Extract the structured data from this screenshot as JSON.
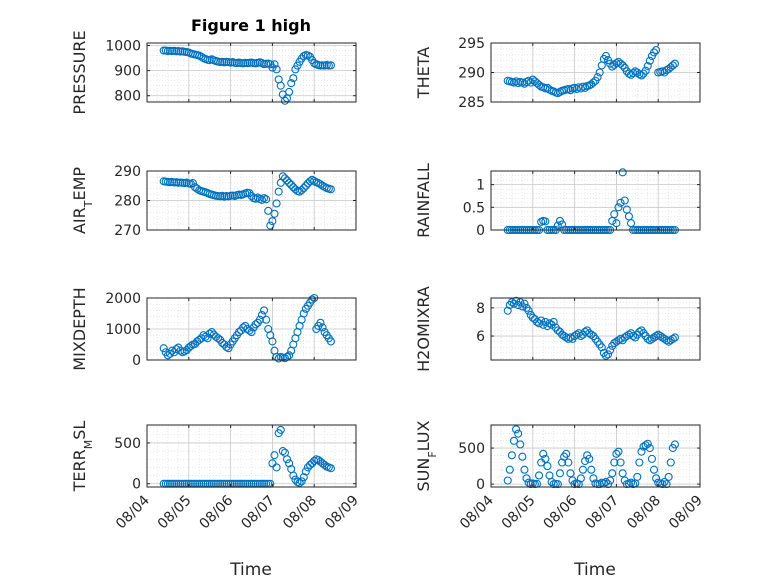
{
  "figure": {
    "title": "Figure 1 high",
    "xlabel": "Time",
    "xticks": [
      "08/04",
      "08/05",
      "08/06",
      "08/07",
      "08/08",
      "08/09"
    ],
    "marker_color": "#0072BD",
    "grid_color": "#d9d9d9",
    "axis_color": "#262626"
  },
  "chart_data": [
    {
      "type": "scatter",
      "ylabel": "PRESSURE",
      "ylim": [
        775,
        1010
      ],
      "yticks": [
        800,
        900,
        1000
      ],
      "x_range": [
        "08/04",
        "08/09"
      ],
      "grid": true,
      "x": [
        4.4,
        4.45,
        4.5,
        4.55,
        4.6,
        4.65,
        4.7,
        4.75,
        4.8,
        4.85,
        4.9,
        4.95,
        5.0,
        5.05,
        5.1,
        5.15,
        5.2,
        5.25,
        5.3,
        5.35,
        5.4,
        5.45,
        5.5,
        5.55,
        5.6,
        5.65,
        5.7,
        5.75,
        5.8,
        5.85,
        5.9,
        5.95,
        6.0,
        6.05,
        6.1,
        6.15,
        6.2,
        6.25,
        6.3,
        6.35,
        6.4,
        6.45,
        6.5,
        6.55,
        6.6,
        6.65,
        6.7,
        6.75,
        6.8,
        6.85,
        6.9,
        6.95,
        7.0,
        7.05,
        7.1,
        7.15,
        7.2,
        7.25,
        7.3,
        7.35,
        7.4,
        7.45,
        7.5,
        7.55,
        7.6,
        7.65,
        7.7,
        7.75,
        7.8,
        7.85,
        7.9,
        7.95,
        8.0,
        8.05,
        8.1,
        8.15,
        8.2,
        8.25,
        8.3,
        8.35,
        8.4
      ],
      "y": [
        980,
        980,
        978,
        979,
        978,
        979,
        977,
        978,
        976,
        977,
        975,
        974,
        972,
        968,
        966,
        964,
        962,
        960,
        955,
        950,
        946,
        943,
        942,
        945,
        941,
        938,
        936,
        934,
        935,
        933,
        935,
        934,
        932,
        934,
        931,
        930,
        932,
        930,
        929,
        931,
        930,
        931,
        932,
        930,
        929,
        931,
        933,
        930,
        926,
        927,
        928,
        925,
        912,
        925,
        905,
        865,
        840,
        805,
        780,
        790,
        815,
        850,
        870,
        905,
        920,
        935,
        948,
        958,
        962,
        960,
        955,
        942,
        930,
        925,
        922,
        920,
        921,
        920,
        922,
        920,
        921
      ]
    },
    {
      "type": "scatter",
      "ylabel": "THETA",
      "ylim": [
        285,
        295
      ],
      "yticks": [
        285,
        290,
        295
      ],
      "x_range": [
        "08/04",
        "08/09"
      ],
      "grid": true,
      "x": [
        4.4,
        4.45,
        4.5,
        4.55,
        4.6,
        4.65,
        4.7,
        4.75,
        4.8,
        4.85,
        4.9,
        4.95,
        5.0,
        5.05,
        5.1,
        5.15,
        5.2,
        5.25,
        5.3,
        5.35,
        5.4,
        5.45,
        5.5,
        5.55,
        5.6,
        5.65,
        5.7,
        5.75,
        5.8,
        5.85,
        5.9,
        5.95,
        6.0,
        6.05,
        6.1,
        6.15,
        6.2,
        6.25,
        6.3,
        6.35,
        6.4,
        6.45,
        6.5,
        6.55,
        6.6,
        6.65,
        6.7,
        6.75,
        6.8,
        6.85,
        6.9,
        6.95,
        7.0,
        7.05,
        7.1,
        7.15,
        7.2,
        7.25,
        7.3,
        7.35,
        7.4,
        7.45,
        7.5,
        7.55,
        7.6,
        7.65,
        7.7,
        7.75,
        7.8,
        7.85,
        7.9,
        7.95,
        8.0,
        8.05,
        8.1,
        8.15,
        8.2,
        8.25,
        8.3,
        8.35,
        8.4
      ],
      "y": [
        288.6,
        288.5,
        288.4,
        288.3,
        288.5,
        288.2,
        288.4,
        288.3,
        288.1,
        288.4,
        288.6,
        288.3,
        288.8,
        288.5,
        288.2,
        287.9,
        287.6,
        287.5,
        287.3,
        287.4,
        287.1,
        286.9,
        286.8,
        286.6,
        286.5,
        286.7,
        286.9,
        287.0,
        287.1,
        287.2,
        287.0,
        287.3,
        287.4,
        287.2,
        287.5,
        287.3,
        287.6,
        287.4,
        287.7,
        287.8,
        288.0,
        288.3,
        288.6,
        289.2,
        290.0,
        291.2,
        292.3,
        292.8,
        292.1,
        291.5,
        291.0,
        291.3,
        291.6,
        291.8,
        291.5,
        291.2,
        290.8,
        290.2,
        289.8,
        289.6,
        289.9,
        290.2,
        290.0,
        289.7,
        289.5,
        289.8,
        290.3,
        291.1,
        292.0,
        292.8,
        293.4,
        293.8,
        290.0,
        290.1,
        290.2,
        290.0,
        290.4,
        290.6,
        290.9,
        291.2,
        291.5
      ]
    },
    {
      "type": "scatter",
      "ylabel": "AIR_TEMP",
      "ylim": [
        270,
        290
      ],
      "yticks": [
        270,
        280,
        290
      ],
      "x_range": [
        "08/04",
        "08/09"
      ],
      "grid": true,
      "x": [
        4.4,
        4.45,
        4.5,
        4.55,
        4.6,
        4.65,
        4.7,
        4.75,
        4.8,
        4.85,
        4.9,
        4.95,
        5.0,
        5.05,
        5.1,
        5.15,
        5.2,
        5.25,
        5.3,
        5.35,
        5.4,
        5.45,
        5.5,
        5.55,
        5.6,
        5.65,
        5.7,
        5.75,
        5.8,
        5.85,
        5.9,
        5.95,
        6.0,
        6.05,
        6.1,
        6.15,
        6.2,
        6.25,
        6.3,
        6.35,
        6.4,
        6.45,
        6.5,
        6.55,
        6.6,
        6.65,
        6.7,
        6.75,
        6.8,
        6.85,
        6.9,
        6.95,
        7.0,
        7.05,
        7.1,
        7.15,
        7.2,
        7.25,
        7.3,
        7.35,
        7.4,
        7.45,
        7.5,
        7.55,
        7.6,
        7.65,
        7.7,
        7.75,
        7.8,
        7.85,
        7.9,
        7.95,
        8.0,
        8.05,
        8.1,
        8.15,
        8.2,
        8.25,
        8.3,
        8.35,
        8.4
      ],
      "y": [
        286.5,
        286.4,
        286.3,
        286.2,
        286.3,
        286.1,
        286.2,
        286.0,
        286.1,
        286.0,
        285.9,
        286.1,
        285.8,
        285.6,
        285.9,
        284.5,
        284.0,
        283.5,
        283.2,
        283.0,
        282.8,
        282.5,
        282.2,
        282.0,
        281.8,
        281.6,
        281.5,
        281.4,
        281.6,
        281.3,
        281.5,
        281.4,
        281.6,
        281.7,
        281.5,
        281.8,
        282.0,
        281.9,
        282.1,
        282.4,
        282.6,
        282.5,
        281.5,
        280.8,
        280.6,
        281.0,
        280.5,
        280.2,
        280.8,
        280.4,
        276.5,
        271.5,
        273.0,
        275.5,
        279.0,
        283.0,
        286.0,
        288.2,
        287.5,
        286.8,
        286.0,
        285.3,
        284.5,
        283.8,
        283.2,
        283.0,
        283.5,
        284.2,
        285.0,
        285.8,
        286.5,
        287.0,
        286.6,
        286.2,
        285.9,
        285.5,
        285.0,
        284.6,
        284.2,
        284.0,
        283.8
      ]
    },
    {
      "type": "scatter",
      "ylabel": "RAINFALL",
      "ylim": [
        0,
        1.3
      ],
      "yticks": [
        0,
        0.5,
        1
      ],
      "x_range": [
        "08/04",
        "08/09"
      ],
      "grid": true,
      "x": [
        4.4,
        4.45,
        4.5,
        4.55,
        4.6,
        4.65,
        4.7,
        4.75,
        4.8,
        4.85,
        4.9,
        4.95,
        5.0,
        5.05,
        5.1,
        5.15,
        5.2,
        5.25,
        5.3,
        5.35,
        5.4,
        5.45,
        5.5,
        5.55,
        5.6,
        5.65,
        5.7,
        5.75,
        5.8,
        5.85,
        5.9,
        5.95,
        6.0,
        6.05,
        6.1,
        6.15,
        6.2,
        6.25,
        6.3,
        6.35,
        6.4,
        6.45,
        6.5,
        6.55,
        6.6,
        6.65,
        6.7,
        6.75,
        6.8,
        6.85,
        6.9,
        6.95,
        7.0,
        7.05,
        7.1,
        7.15,
        7.2,
        7.25,
        7.3,
        7.35,
        7.4,
        7.45,
        7.5,
        7.55,
        7.6,
        7.65,
        7.7,
        7.75,
        7.8,
        7.85,
        7.9,
        7.95,
        8.0,
        8.05,
        8.1,
        8.15,
        8.2,
        8.25,
        8.3,
        8.35,
        8.4
      ],
      "y": [
        0,
        0,
        0,
        0,
        0,
        0,
        0,
        0,
        0,
        0,
        0,
        0,
        0,
        0,
        0,
        0,
        0.18,
        0.2,
        0.19,
        0,
        0,
        0,
        0,
        0,
        0.1,
        0.2,
        0.12,
        0,
        0,
        0,
        0,
        0,
        0,
        0,
        0,
        0,
        0,
        0,
        0,
        0,
        0,
        0,
        0,
        0,
        0,
        0,
        0,
        0,
        0,
        0,
        0.2,
        0.35,
        0.15,
        0.5,
        0.6,
        1.27,
        0.65,
        0.45,
        0.3,
        0.15,
        0,
        0,
        0,
        0,
        0,
        0,
        0,
        0,
        0,
        0,
        0,
        0,
        0,
        0,
        0,
        0,
        0,
        0,
        0,
        0,
        0
      ]
    },
    {
      "type": "scatter",
      "ylabel": "MIXDEPTH",
      "ylim": [
        0,
        2000
      ],
      "yticks": [
        0,
        1000,
        2000
      ],
      "x_range": [
        "08/04",
        "08/09"
      ],
      "grid": true,
      "x": [
        4.4,
        4.45,
        4.5,
        4.55,
        4.6,
        4.65,
        4.7,
        4.75,
        4.8,
        4.85,
        4.9,
        4.95,
        5.0,
        5.05,
        5.1,
        5.15,
        5.2,
        5.25,
        5.3,
        5.35,
        5.4,
        5.45,
        5.5,
        5.55,
        5.6,
        5.65,
        5.7,
        5.75,
        5.8,
        5.85,
        5.9,
        5.95,
        6.0,
        6.05,
        6.1,
        6.15,
        6.2,
        6.25,
        6.3,
        6.35,
        6.4,
        6.45,
        6.5,
        6.55,
        6.6,
        6.65,
        6.7,
        6.75,
        6.8,
        6.85,
        6.9,
        6.95,
        7.0,
        7.05,
        7.1,
        7.15,
        7.2,
        7.25,
        7.3,
        7.35,
        7.4,
        7.45,
        7.5,
        7.55,
        7.6,
        7.65,
        7.7,
        7.75,
        7.8,
        7.85,
        7.9,
        7.95,
        8.0,
        8.05,
        8.1,
        8.15,
        8.2,
        8.25,
        8.3,
        8.35,
        8.4
      ],
      "y": [
        380,
        250,
        150,
        200,
        300,
        250,
        350,
        400,
        300,
        250,
        280,
        320,
        400,
        450,
        500,
        520,
        600,
        650,
        700,
        800,
        750,
        700,
        850,
        900,
        820,
        750,
        700,
        650,
        550,
        500,
        420,
        380,
        500,
        600,
        700,
        800,
        900,
        950,
        1050,
        1100,
        1000,
        950,
        900,
        1050,
        1150,
        1200,
        1300,
        1450,
        1600,
        1300,
        1000,
        800,
        600,
        300,
        100,
        50,
        100,
        80,
        60,
        100,
        150,
        300,
        500,
        700,
        900,
        1100,
        1300,
        1500,
        1650,
        1750,
        1850,
        1950,
        2000,
        1000,
        1100,
        1200,
        1050,
        900,
        800,
        700,
        600
      ]
    },
    {
      "type": "scatter",
      "ylabel": "H2OMIXRA",
      "ylim": [
        4.3,
        8.7
      ],
      "yticks": [
        6,
        8
      ],
      "x_range": [
        "08/04",
        "08/09"
      ],
      "grid": true,
      "x": [
        4.4,
        4.45,
        4.5,
        4.55,
        4.6,
        4.65,
        4.7,
        4.75,
        4.8,
        4.85,
        4.9,
        4.95,
        5.0,
        5.05,
        5.1,
        5.15,
        5.2,
        5.25,
        5.3,
        5.35,
        5.4,
        5.45,
        5.5,
        5.55,
        5.6,
        5.65,
        5.7,
        5.75,
        5.8,
        5.85,
        5.9,
        5.95,
        6.0,
        6.05,
        6.1,
        6.15,
        6.2,
        6.25,
        6.3,
        6.35,
        6.4,
        6.45,
        6.5,
        6.55,
        6.6,
        6.65,
        6.7,
        6.75,
        6.8,
        6.85,
        6.9,
        6.95,
        7.0,
        7.05,
        7.1,
        7.15,
        7.2,
        7.25,
        7.3,
        7.35,
        7.4,
        7.45,
        7.5,
        7.55,
        7.6,
        7.65,
        7.7,
        7.75,
        7.8,
        7.85,
        7.9,
        7.95,
        8.0,
        8.05,
        8.1,
        8.15,
        8.2,
        8.25,
        8.3,
        8.35,
        8.4
      ],
      "y": [
        7.8,
        8.2,
        8.4,
        8.3,
        8.5,
        8.2,
        8.4,
        8.1,
        8.3,
        8.0,
        7.8,
        7.5,
        7.3,
        7.2,
        7.0,
        6.9,
        7.1,
        6.8,
        7.0,
        6.7,
        6.9,
        6.8,
        7.0,
        6.6,
        6.4,
        6.3,
        6.1,
        6.0,
        5.9,
        5.8,
        5.9,
        5.8,
        6.0,
        6.1,
        6.2,
        6.0,
        6.1,
        6.3,
        6.4,
        6.2,
        6.1,
        6.0,
        5.8,
        5.6,
        5.4,
        5.2,
        4.8,
        4.6,
        4.7,
        5.0,
        5.3,
        5.5,
        5.6,
        5.7,
        5.8,
        5.7,
        5.9,
        6.0,
        6.1,
        6.2,
        6.0,
        5.9,
        6.1,
        6.3,
        6.4,
        6.2,
        6.0,
        5.8,
        5.7,
        5.8,
        5.9,
        6.0,
        6.1,
        6.0,
        5.9,
        5.8,
        5.7,
        5.6,
        5.7,
        5.8,
        5.9
      ]
    },
    {
      "type": "scatter",
      "ylabel": "TERR_MSL",
      "ylim": [
        -40,
        720
      ],
      "yticks": [
        0,
        500
      ],
      "x_range": [
        "08/04",
        "08/09"
      ],
      "grid": true,
      "x": [
        4.4,
        4.45,
        4.5,
        4.55,
        4.6,
        4.65,
        4.7,
        4.75,
        4.8,
        4.85,
        4.9,
        4.95,
        5.0,
        5.05,
        5.1,
        5.15,
        5.2,
        5.25,
        5.3,
        5.35,
        5.4,
        5.45,
        5.5,
        5.55,
        5.6,
        5.65,
        5.7,
        5.75,
        5.8,
        5.85,
        5.9,
        5.95,
        6.0,
        6.05,
        6.1,
        6.15,
        6.2,
        6.25,
        6.3,
        6.35,
        6.4,
        6.45,
        6.5,
        6.55,
        6.6,
        6.65,
        6.7,
        6.75,
        6.8,
        6.85,
        6.9,
        6.95,
        7.0,
        7.05,
        7.1,
        7.15,
        7.2,
        7.25,
        7.3,
        7.35,
        7.4,
        7.45,
        7.5,
        7.55,
        7.6,
        7.65,
        7.7,
        7.75,
        7.8,
        7.85,
        7.9,
        7.95,
        8.0,
        8.05,
        8.1,
        8.15,
        8.2,
        8.25,
        8.3,
        8.35,
        8.4
      ],
      "y": [
        0,
        0,
        0,
        0,
        0,
        0,
        0,
        0,
        0,
        0,
        0,
        0,
        0,
        0,
        0,
        0,
        0,
        0,
        0,
        0,
        0,
        0,
        0,
        0,
        0,
        0,
        0,
        0,
        0,
        0,
        0,
        0,
        0,
        0,
        0,
        0,
        0,
        0,
        0,
        0,
        0,
        0,
        0,
        0,
        0,
        0,
        0,
        0,
        0,
        0,
        0,
        0,
        250,
        350,
        200,
        620,
        660,
        400,
        380,
        300,
        250,
        180,
        100,
        50,
        20,
        10,
        30,
        80,
        150,
        200,
        230,
        250,
        280,
        300,
        290,
        270,
        250,
        230,
        210,
        200,
        190
      ]
    },
    {
      "type": "scatter",
      "ylabel": "SUN_FLUX",
      "ylim": [
        -40,
        820
      ],
      "yticks": [
        0,
        500
      ],
      "x_range": [
        "08/04",
        "08/09"
      ],
      "grid": true,
      "x": [
        4.4,
        4.45,
        4.5,
        4.55,
        4.6,
        4.65,
        4.7,
        4.75,
        4.8,
        4.85,
        4.9,
        4.95,
        5.0,
        5.05,
        5.1,
        5.15,
        5.2,
        5.25,
        5.3,
        5.35,
        5.4,
        5.45,
        5.5,
        5.55,
        5.6,
        5.65,
        5.7,
        5.75,
        5.8,
        5.85,
        5.9,
        5.95,
        6.0,
        6.05,
        6.1,
        6.15,
        6.2,
        6.25,
        6.3,
        6.35,
        6.4,
        6.45,
        6.5,
        6.55,
        6.6,
        6.65,
        6.7,
        6.75,
        6.8,
        6.85,
        6.9,
        6.95,
        7.0,
        7.05,
        7.1,
        7.15,
        7.2,
        7.25,
        7.3,
        7.35,
        7.4,
        7.45,
        7.5,
        7.55,
        7.6,
        7.65,
        7.7,
        7.75,
        7.8,
        7.85,
        7.9,
        7.95,
        8.0,
        8.05,
        8.1,
        8.15,
        8.2,
        8.25,
        8.3,
        8.35,
        8.4
      ],
      "y": [
        50,
        200,
        400,
        600,
        760,
        700,
        550,
        380,
        200,
        80,
        20,
        0,
        10,
        0,
        5,
        120,
        300,
        420,
        350,
        250,
        120,
        30,
        0,
        5,
        0,
        150,
        300,
        380,
        420,
        300,
        150,
        50,
        0,
        10,
        0,
        80,
        200,
        320,
        400,
        350,
        200,
        80,
        10,
        0,
        0,
        20,
        10,
        30,
        0,
        50,
        150,
        300,
        420,
        450,
        300,
        150,
        50,
        0,
        5,
        20,
        0,
        10,
        100,
        300,
        450,
        520,
        540,
        560,
        500,
        350,
        200,
        80,
        20,
        10,
        0,
        30,
        0,
        100,
        300,
        500,
        550
      ]
    }
  ]
}
